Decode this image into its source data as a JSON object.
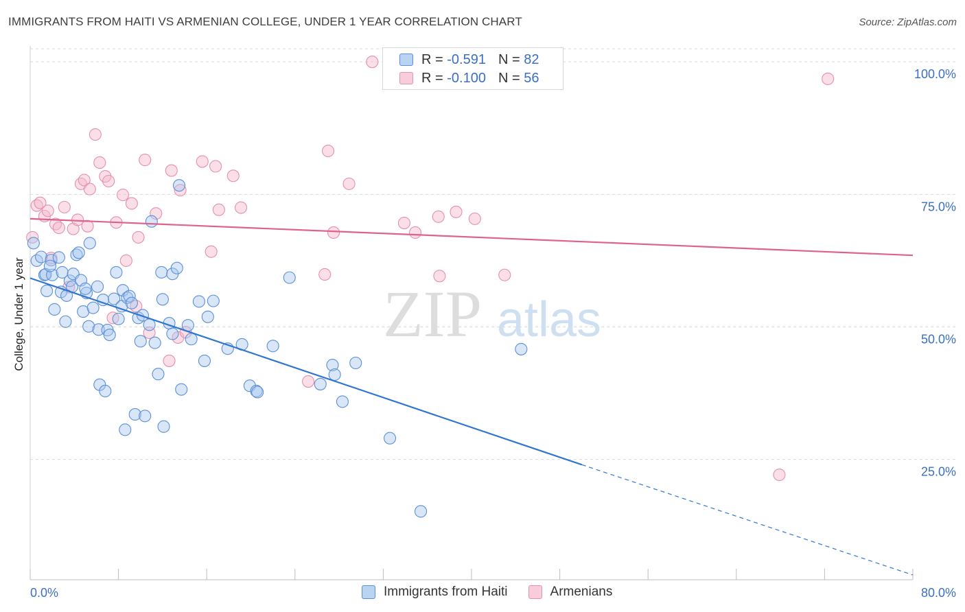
{
  "header": {
    "title": "IMMIGRANTS FROM HAITI VS ARMENIAN COLLEGE, UNDER 1 YEAR CORRELATION CHART",
    "source": "Source: ZipAtlas.com"
  },
  "watermark": {
    "zip": "ZIP",
    "atlas": "atlas"
  },
  "legend": {
    "rows": [
      {
        "r_label": "R =",
        "r_value": "-0.591",
        "n_label": "N =",
        "n_value": "82"
      },
      {
        "r_label": "R =",
        "r_value": "-0.100",
        "n_label": "N =",
        "n_value": "56"
      }
    ]
  },
  "bottom_legend": {
    "haiti": "Immigrants from Haiti",
    "armenians": "Armenians"
  },
  "colors": {
    "haiti_fill": "#a8c8f0",
    "haiti_stroke": "#5b8fd6",
    "haiti_line": "#2f76d2",
    "arm_fill": "#f5b8cb",
    "arm_stroke": "#e58fac",
    "arm_line": "#e0608e",
    "tick_text": "#3a6fc4",
    "grid": "#d9d9d9"
  },
  "chart_data": {
    "type": "scatter",
    "title": "IMMIGRANTS FROM HAITI VS ARMENIAN COLLEGE, UNDER 1 YEAR CORRELATION CHART",
    "xlabel": "",
    "ylabel": "College, Under 1 year",
    "xlim": [
      0,
      80
    ],
    "ylim": [
      2.3,
      103
    ],
    "x_tick_labels": [
      "0.0%",
      "80.0%"
    ],
    "y_ticks": [
      25,
      50,
      75,
      100
    ],
    "y_tick_labels": [
      "25.0%",
      "50.0%",
      "75.0%",
      "100.0%"
    ],
    "grid": true,
    "series": [
      {
        "name": "Immigrants from Haiti",
        "points": [
          [
            0.3,
            65.8
          ],
          [
            0.6,
            62.5
          ],
          [
            1.0,
            63.2
          ],
          [
            1.3,
            59.8
          ],
          [
            1.5,
            56.8
          ],
          [
            1.4,
            59.9
          ],
          [
            1.9,
            62.6
          ],
          [
            2.0,
            59.8
          ],
          [
            2.2,
            53.3
          ],
          [
            2.6,
            63.1
          ],
          [
            2.8,
            56.6
          ],
          [
            2.9,
            60.3
          ],
          [
            3.2,
            51.0
          ],
          [
            3.6,
            58.7
          ],
          [
            3.8,
            57.6
          ],
          [
            3.9,
            60.0
          ],
          [
            4.2,
            63.6
          ],
          [
            4.4,
            64.0
          ],
          [
            4.6,
            58.8
          ],
          [
            4.8,
            52.9
          ],
          [
            5.1,
            56.4
          ],
          [
            5.3,
            50.1
          ],
          [
            5.4,
            65.8
          ],
          [
            5.7,
            53.6
          ],
          [
            6.1,
            57.6
          ],
          [
            6.2,
            49.5
          ],
          [
            6.3,
            39.1
          ],
          [
            6.6,
            55.1
          ],
          [
            6.8,
            37.9
          ],
          [
            7.0,
            49.4
          ],
          [
            7.2,
            48.5
          ],
          [
            7.6,
            55.3
          ],
          [
            7.8,
            60.3
          ],
          [
            8.0,
            51.5
          ],
          [
            8.3,
            53.9
          ],
          [
            8.4,
            56.9
          ],
          [
            8.6,
            30.6
          ],
          [
            8.8,
            55.5
          ],
          [
            9.0,
            55.8
          ],
          [
            9.2,
            54.5
          ],
          [
            9.5,
            33.5
          ],
          [
            9.8,
            51.7
          ],
          [
            10.0,
            47.3
          ],
          [
            10.2,
            52.2
          ],
          [
            10.4,
            33.2
          ],
          [
            10.8,
            50.4
          ],
          [
            11.0,
            69.9
          ],
          [
            11.3,
            47.0
          ],
          [
            11.6,
            41.1
          ],
          [
            11.9,
            60.3
          ],
          [
            12.0,
            55.2
          ],
          [
            12.1,
            31.2
          ],
          [
            12.6,
            50.7
          ],
          [
            12.9,
            60.0
          ],
          [
            12.9,
            48.7
          ],
          [
            13.3,
            61.1
          ],
          [
            13.5,
            76.7
          ],
          [
            13.7,
            38.2
          ],
          [
            14.3,
            50.3
          ],
          [
            14.6,
            47.7
          ],
          [
            15.3,
            54.8
          ],
          [
            15.8,
            43.6
          ],
          [
            16.1,
            51.9
          ],
          [
            16.6,
            54.9
          ],
          [
            17.9,
            45.9
          ],
          [
            19.2,
            46.7
          ],
          [
            19.9,
            38.9
          ],
          [
            20.5,
            37.9
          ],
          [
            20.6,
            37.7
          ],
          [
            22.0,
            46.4
          ],
          [
            23.5,
            59.3
          ],
          [
            26.3,
            39.2
          ],
          [
            27.4,
            42.8
          ],
          [
            27.6,
            41.0
          ],
          [
            28.3,
            35.9
          ],
          [
            29.5,
            43.2
          ],
          [
            32.6,
            29.0
          ],
          [
            35.4,
            15.2
          ],
          [
            44.5,
            45.8
          ],
          [
            1.8,
            61.5
          ],
          [
            5.0,
            57.2
          ],
          [
            3.3,
            55.9
          ]
        ],
        "trend": {
          "x0": 0,
          "y0": 59.2,
          "x1": 50,
          "y1": 24.0,
          "dash_to_x": 80,
          "dash_to_y": 3.2
        }
      },
      {
        "name": "Armenians",
        "points": [
          [
            0.2,
            66.9
          ],
          [
            0.6,
            72.9
          ],
          [
            0.9,
            73.4
          ],
          [
            1.3,
            70.9
          ],
          [
            1.6,
            71.9
          ],
          [
            1.9,
            63.0
          ],
          [
            2.3,
            69.4
          ],
          [
            2.6,
            68.7
          ],
          [
            3.1,
            72.6
          ],
          [
            3.5,
            57.5
          ],
          [
            3.9,
            68.5
          ],
          [
            4.3,
            70.2
          ],
          [
            4.6,
            77.0
          ],
          [
            4.9,
            77.7
          ],
          [
            5.2,
            69.0
          ],
          [
            5.4,
            76.0
          ],
          [
            5.9,
            86.3
          ],
          [
            6.3,
            81.0
          ],
          [
            6.8,
            78.4
          ],
          [
            7.1,
            77.5
          ],
          [
            7.8,
            69.7
          ],
          [
            8.4,
            74.9
          ],
          [
            8.7,
            62.5
          ],
          [
            9.2,
            73.3
          ],
          [
            9.8,
            66.9
          ],
          [
            10.4,
            81.5
          ],
          [
            10.8,
            48.9
          ],
          [
            11.4,
            71.4
          ],
          [
            12.6,
            43.6
          ],
          [
            12.8,
            79.5
          ],
          [
            13.4,
            48.0
          ],
          [
            13.6,
            75.8
          ],
          [
            14.1,
            49.0
          ],
          [
            15.6,
            81.2
          ],
          [
            16.4,
            64.2
          ],
          [
            16.8,
            80.3
          ],
          [
            17.1,
            72.1
          ],
          [
            18.4,
            78.5
          ],
          [
            19.1,
            72.5
          ],
          [
            25.2,
            39.7
          ],
          [
            26.7,
            59.9
          ],
          [
            27.0,
            83.2
          ],
          [
            27.5,
            67.8
          ],
          [
            28.9,
            77.0
          ],
          [
            31.0,
            100.0
          ],
          [
            33.9,
            69.6
          ],
          [
            34.9,
            67.8
          ],
          [
            37.0,
            70.8
          ],
          [
            37.1,
            59.6
          ],
          [
            38.6,
            71.7
          ],
          [
            40.3,
            70.4
          ],
          [
            43.0,
            59.8
          ],
          [
            67.9,
            22.1
          ],
          [
            72.3,
            96.8
          ],
          [
            7.5,
            51.7
          ],
          [
            9.6,
            53.9
          ]
        ],
        "trend": {
          "x0": 0,
          "y0": 70.4,
          "x1": 80,
          "y1": 63.5
        }
      }
    ]
  }
}
